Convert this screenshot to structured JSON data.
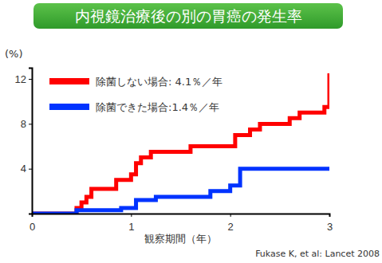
{
  "chart_data": {
    "type": "line",
    "title": "内視鏡治療後の別の胃癌の発生率",
    "y_label": "(%)",
    "x_label": "観察期間（年）",
    "source": "Fukase K, et al: Lancet 2008",
    "xlim": [
      0,
      3
    ],
    "xticks": [
      0,
      1,
      2,
      3
    ],
    "ylim": [
      0,
      13
    ],
    "yticks": [
      4,
      8,
      12
    ],
    "grid": false,
    "legend": "top-left",
    "line_style": "step",
    "series": [
      {
        "name": "除菌しない場合: 4.1％／年",
        "color": "#ff0000",
        "x": [
          0,
          0.45,
          0.5,
          0.55,
          0.6,
          0.85,
          1.0,
          1.05,
          1.1,
          1.2,
          1.6,
          2.05,
          2.2,
          2.3,
          2.6,
          2.7,
          2.95,
          3.0
        ],
        "values": [
          0,
          0.5,
          1,
          1.5,
          2.2,
          3,
          3.5,
          4.5,
          5,
          5.5,
          6,
          7,
          7.5,
          8,
          8.5,
          9,
          9.5,
          12.5
        ]
      },
      {
        "name": "除菌できた場合:1.4％／年",
        "color": "#0033ff",
        "x": [
          0,
          0.45,
          0.9,
          1.05,
          1.25,
          1.8,
          2.0,
          2.1,
          3.0
        ],
        "values": [
          0,
          0.3,
          0.5,
          1.2,
          1.5,
          2,
          2.5,
          4,
          4
        ]
      }
    ]
  }
}
